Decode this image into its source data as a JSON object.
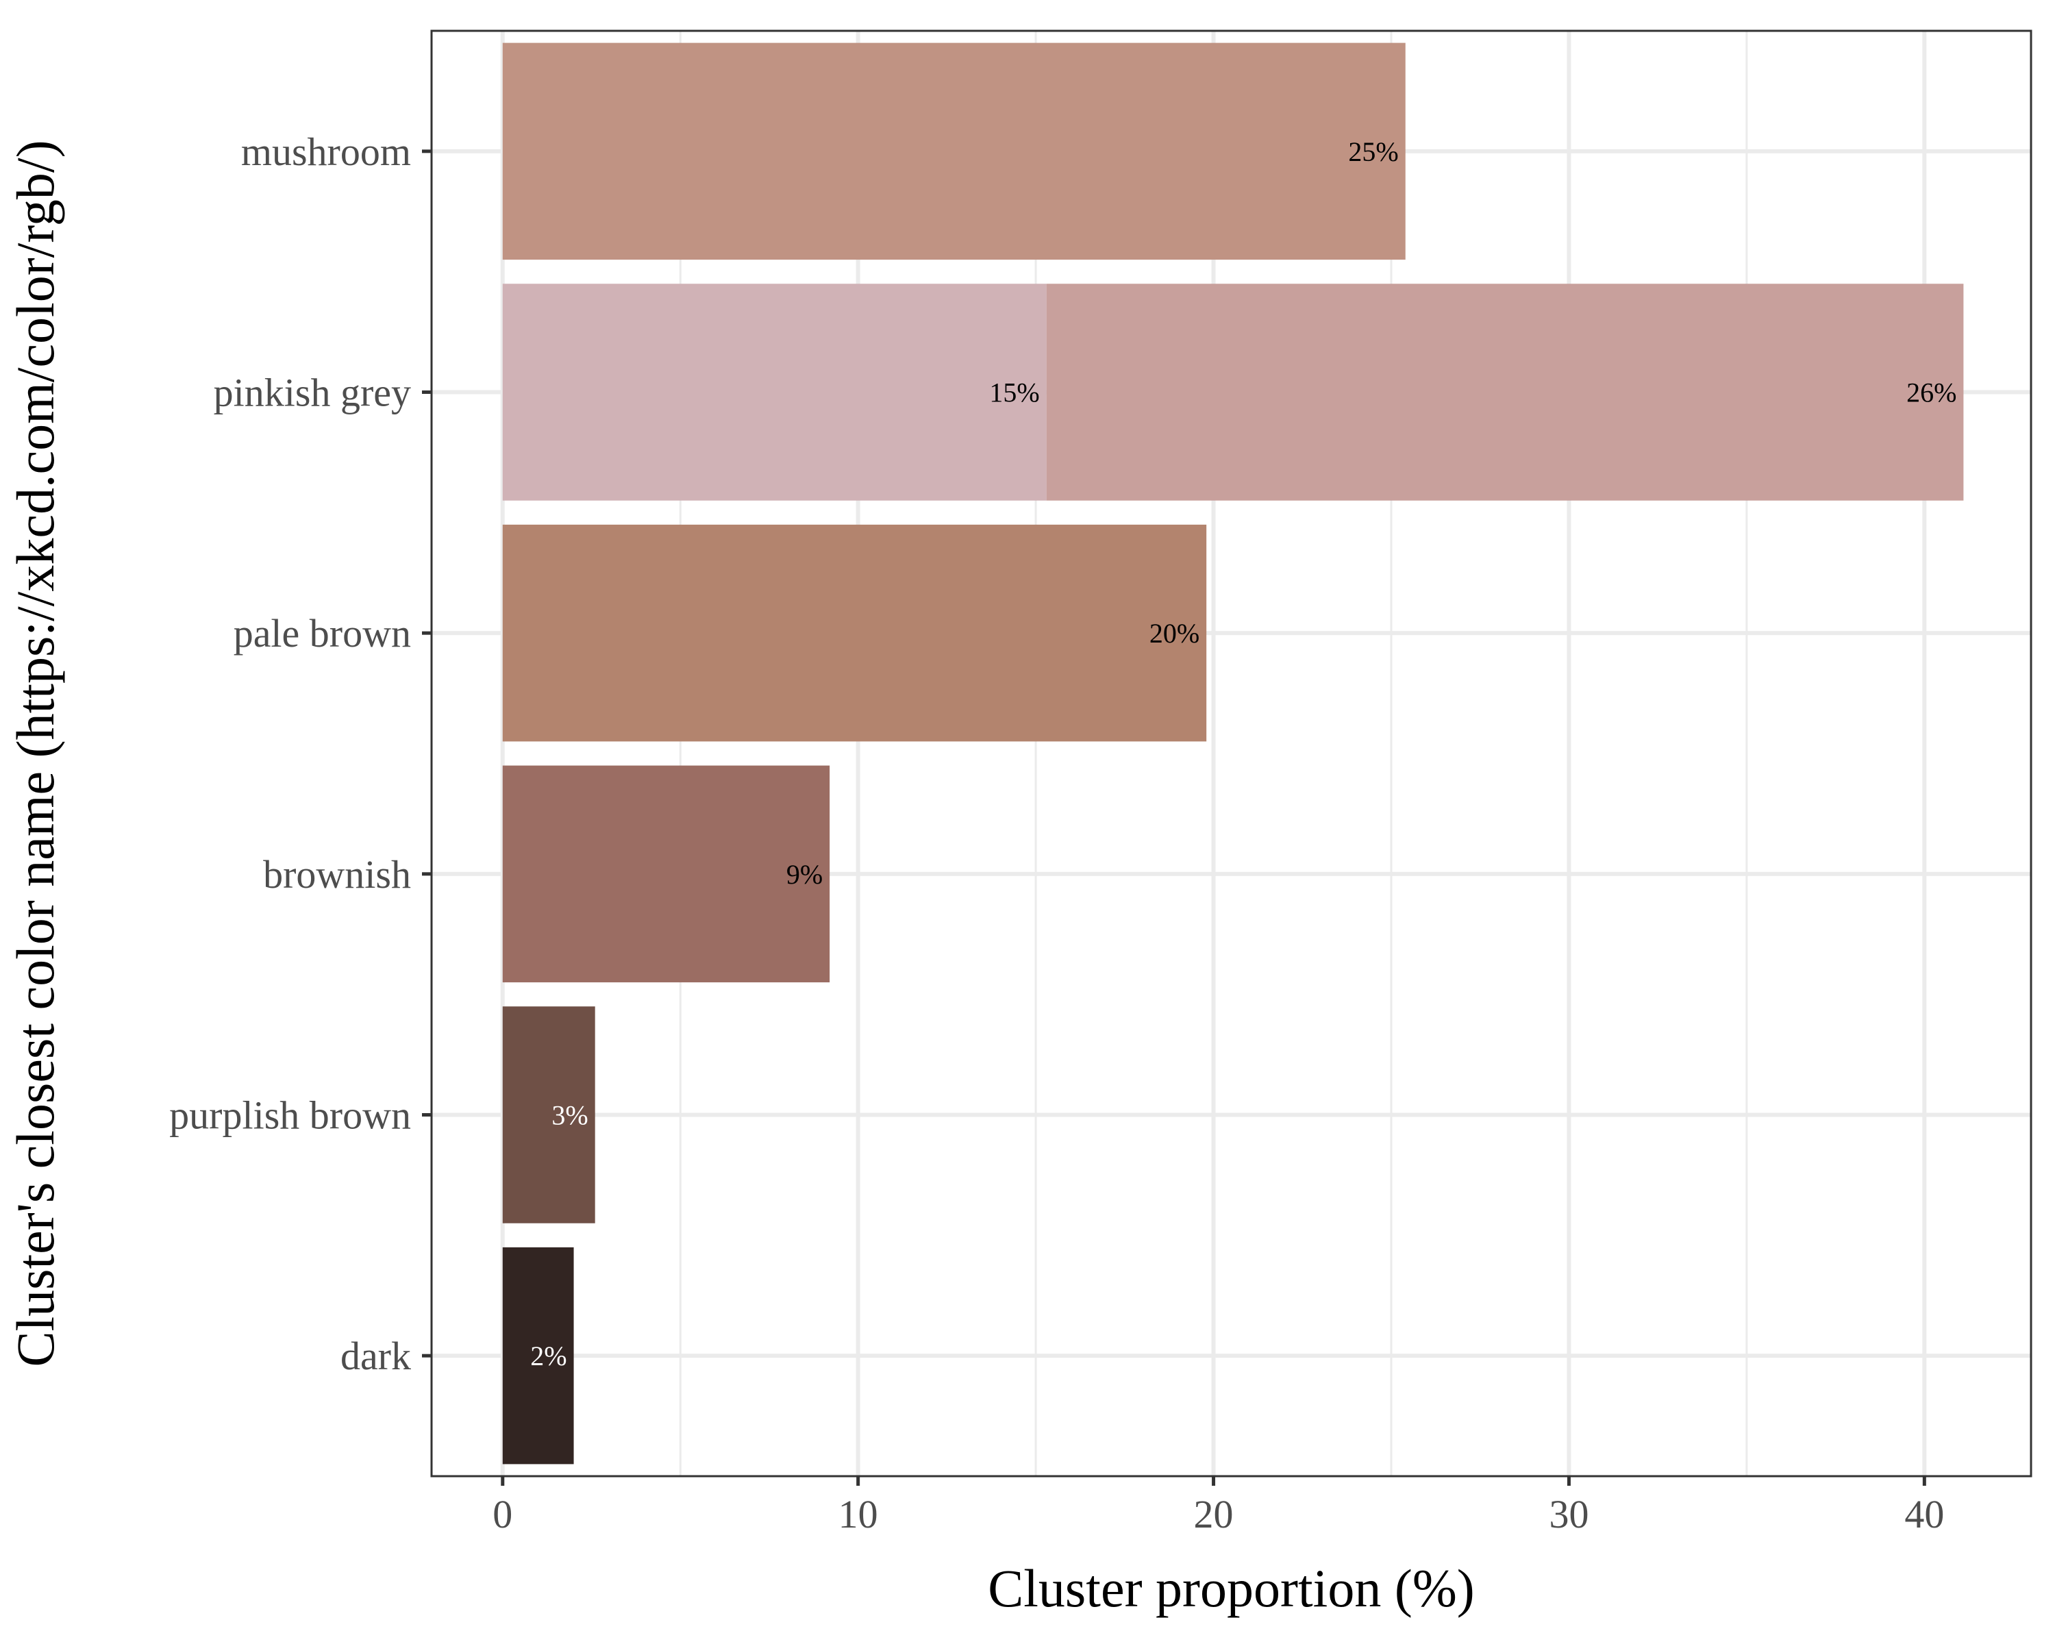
{
  "chart_data": {
    "type": "bar",
    "orientation": "horizontal",
    "stacked": true,
    "xlabel": "Cluster proportion (%)",
    "ylabel": "Cluster's closest color name (https://xkcd.com/color/rgb/)",
    "xlim": [
      -2,
      43
    ],
    "x_ticks": [
      "0",
      "10",
      "20",
      "30",
      "40"
    ],
    "grid": true,
    "categories": [
      "mushroom",
      "pinkish grey",
      "pale brown",
      "brownish",
      "purplish brown",
      "dark"
    ],
    "segments": [
      {
        "category": "mushroom",
        "value": 25.4,
        "label": "25%",
        "color": "#c09383",
        "label_color": "#000000"
      },
      {
        "category": "pinkish grey",
        "value": 15.3,
        "label": "15%",
        "color": "#d0b2b6",
        "label_color": "#000000"
      },
      {
        "category": "pinkish grey",
        "value": 25.8,
        "label": "26%",
        "color": "#c8a09c",
        "label_color": "#000000"
      },
      {
        "category": "pale brown",
        "value": 19.8,
        "label": "20%",
        "color": "#b3846e",
        "label_color": "#000000"
      },
      {
        "category": "brownish",
        "value": 9.2,
        "label": "9%",
        "color": "#9b6d63",
        "label_color": "#000000"
      },
      {
        "category": "purplish brown",
        "value": 2.6,
        "label": "3%",
        "color": "#6f5046",
        "label_color": "#ffffff"
      },
      {
        "category": "dark",
        "value": 2.0,
        "label": "2%",
        "color": "#322522",
        "label_color": "#ffffff"
      }
    ]
  }
}
